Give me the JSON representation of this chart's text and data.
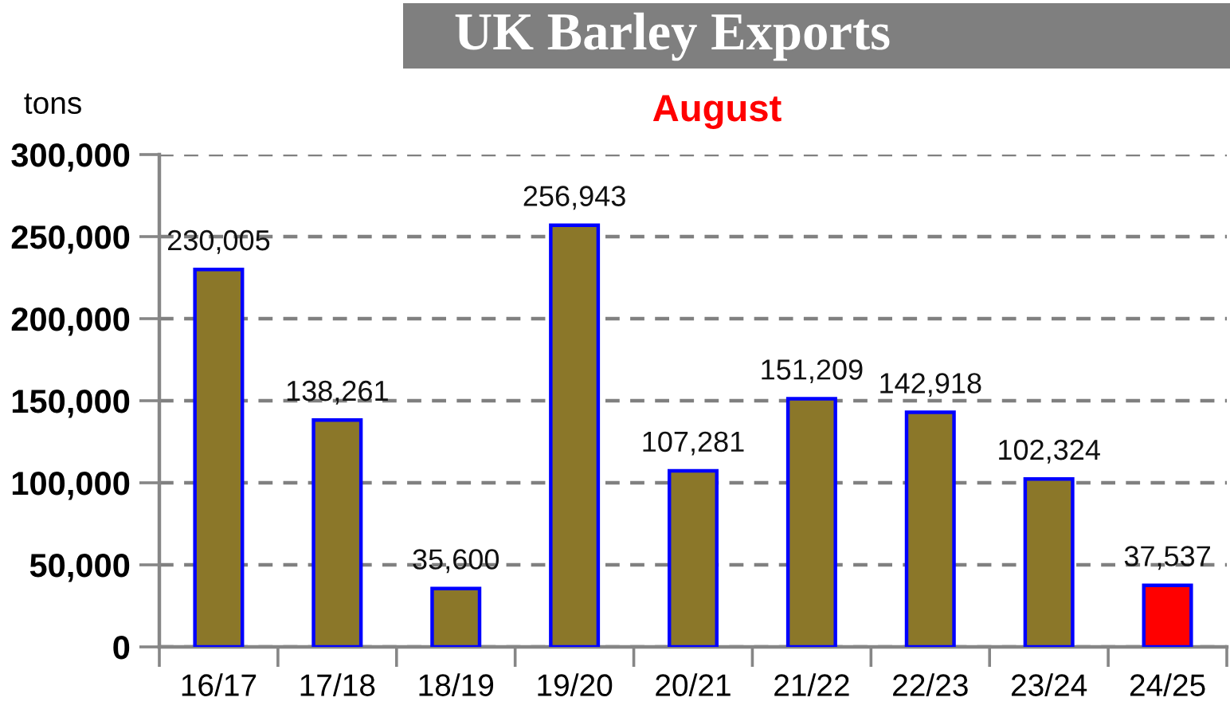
{
  "chart_data": {
    "type": "bar",
    "title": "UK Barley Exports",
    "subtitle": "August",
    "ylabel": "tons",
    "categories": [
      "16/17",
      "17/18",
      "18/19",
      "19/20",
      "20/21",
      "21/22",
      "22/23",
      "23/24",
      "24/25"
    ],
    "values": [
      230005,
      138261,
      35600,
      256943,
      107281,
      151209,
      142918,
      102324,
      37537
    ],
    "colors": [
      "#8b7729",
      "#8b7729",
      "#8b7729",
      "#8b7729",
      "#8b7729",
      "#8b7729",
      "#8b7729",
      "#8b7729",
      "#ff0000"
    ],
    "value_labels": [
      "230,005",
      "138,261",
      "35,600",
      "256,943",
      "107,281",
      "151,209",
      "142,918",
      "102,324",
      "37,537"
    ],
    "ylim": [
      0,
      300000
    ],
    "yticks": [
      0,
      {
        "value": 50000,
        "label": "50,000"
      },
      {
        "value": 100000,
        "label": "100,000"
      },
      {
        "value": 150000,
        "label": "150,000"
      },
      {
        "value": 200000,
        "label": "200,000"
      },
      {
        "value": 250000,
        "label": "250,000"
      },
      {
        "value": 300000,
        "label": "300,000"
      }
    ],
    "grid": "y"
  }
}
